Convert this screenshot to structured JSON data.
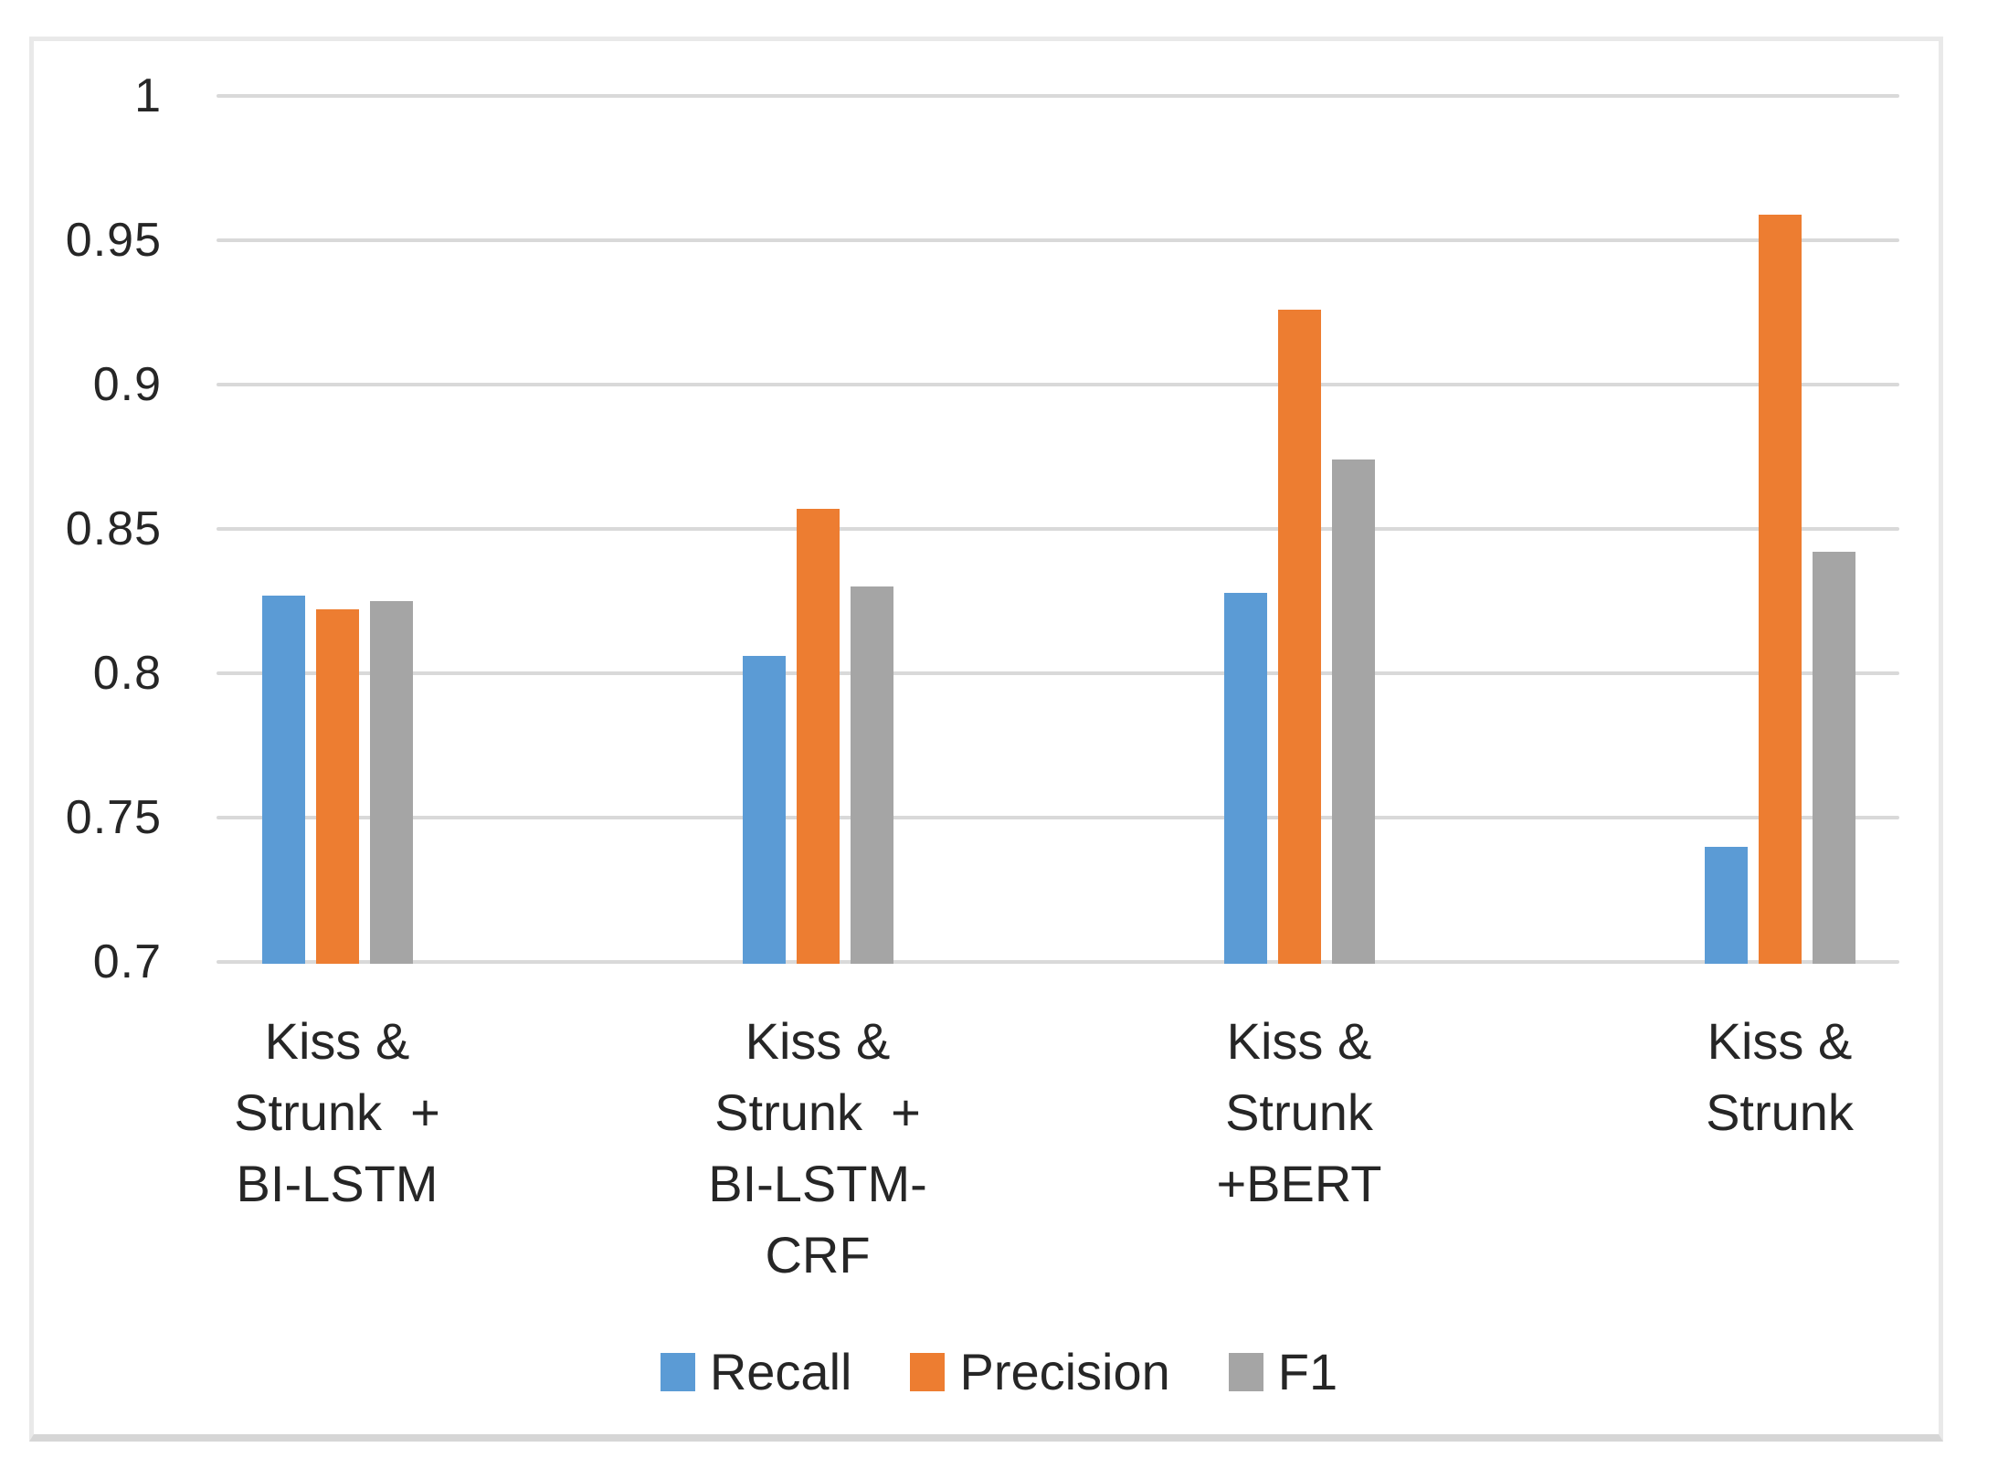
{
  "figure": {
    "background": "#FFFFFF",
    "border_color": "#E9E9E9"
  },
  "chart_data": {
    "type": "bar",
    "title": "",
    "xlabel": "",
    "ylabel": "",
    "categories": [
      "Kiss &\nStrunk  +\nBI-LSTM",
      "Kiss &\nStrunk  +\nBI-LSTM-\nCRF",
      "Kiss &\nStrunk\n+BERT",
      "Kiss &\nStrunk"
    ],
    "series": [
      {
        "name": "Recall",
        "color": "#5B9BD5",
        "values": [
          0.827,
          0.806,
          0.828,
          0.74
        ]
      },
      {
        "name": "Precision",
        "color": "#ED7D31",
        "values": [
          0.822,
          0.857,
          0.926,
          0.959
        ]
      },
      {
        "name": "F1",
        "color": "#A5A5A5",
        "values": [
          0.825,
          0.83,
          0.874,
          0.842
        ]
      }
    ],
    "ylim": [
      0.7,
      1.0
    ],
    "y_ticks": [
      {
        "value": 1.0,
        "label": "1"
      },
      {
        "value": 0.95,
        "label": "0.95"
      },
      {
        "value": 0.9,
        "label": "0.9"
      },
      {
        "value": 0.85,
        "label": "0.85"
      },
      {
        "value": 0.8,
        "label": "0.8"
      },
      {
        "value": 0.75,
        "label": "0.75"
      },
      {
        "value": 0.7,
        "label": "0.7"
      }
    ],
    "grid": "horizontal-major",
    "gridline_color": "#D9D9D9",
    "text_color": "#262626",
    "legend_position": "bottom",
    "legend": [
      "Recall",
      "Precision",
      "F1"
    ]
  }
}
